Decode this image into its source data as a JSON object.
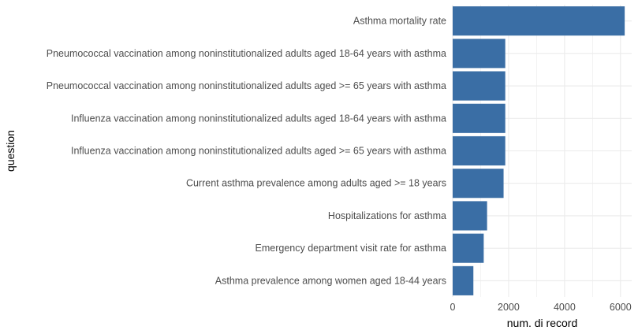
{
  "chart_data": {
    "type": "bar",
    "orientation": "horizontal",
    "categories": [
      "Asthma mortality rate",
      "Pneumococcal vaccination among noninstitutionalized adults aged 18-64 years with asthma",
      "Pneumococcal vaccination among noninstitutionalized adults aged >= 65 years with asthma",
      "Influenza vaccination among noninstitutionalized adults aged 18-64 years with asthma",
      "Influenza vaccination among noninstitutionalized adults aged >= 65 years with asthma",
      "Current asthma prevalence among adults aged >= 18 years",
      "Hospitalizations for asthma",
      "Emergency department visit rate for asthma",
      "Asthma prevalence among women aged 18-44 years"
    ],
    "values": [
      6150,
      1880,
      1880,
      1880,
      1880,
      1820,
      1230,
      1110,
      740
    ],
    "xlabel": "num. di record",
    "ylabel": "question",
    "xlim": [
      0,
      6400
    ],
    "xticks": [
      0,
      2000,
      4000,
      6000
    ],
    "xtick_labels": [
      "0",
      "2000",
      "4000",
      "6000"
    ],
    "grid": true,
    "bar_color": "#3a6ea5",
    "grid_color": "#ebebeb"
  }
}
